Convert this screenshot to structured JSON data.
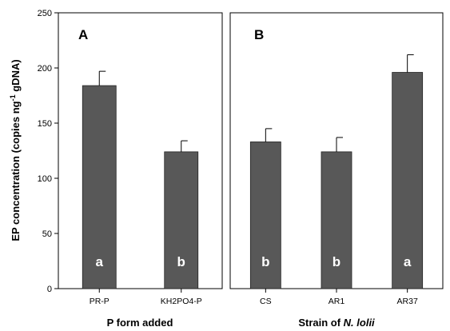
{
  "chart_data": [
    {
      "type": "bar",
      "panel_label": "A",
      "ylabel_parts": [
        "EP concentration (copies ng",
        "-1",
        " gDNA)"
      ],
      "xlabel_parts": [
        {
          "text": "P form added",
          "italic": false
        }
      ],
      "ylim": [
        0,
        250
      ],
      "yticks": [
        "0",
        "50",
        "100",
        "150",
        "200",
        "250"
      ],
      "categories": [
        "PR-P",
        "KH2PO4-P"
      ],
      "values": [
        184,
        124
      ],
      "errors": [
        13,
        10
      ],
      "letters": [
        "a",
        "b"
      ],
      "bar_color": "#585858"
    },
    {
      "type": "bar",
      "panel_label": "B",
      "xlabel_parts": [
        {
          "text": "Strain of ",
          "italic": false
        },
        {
          "text": "N. lolii",
          "italic": true
        }
      ],
      "ylim": [
        0,
        250
      ],
      "categories": [
        "CS",
        "AR1",
        "AR37"
      ],
      "values": [
        133,
        124,
        196
      ],
      "errors": [
        12,
        13,
        16
      ],
      "letters": [
        "b",
        "b",
        "a"
      ],
      "bar_color": "#585858"
    }
  ]
}
